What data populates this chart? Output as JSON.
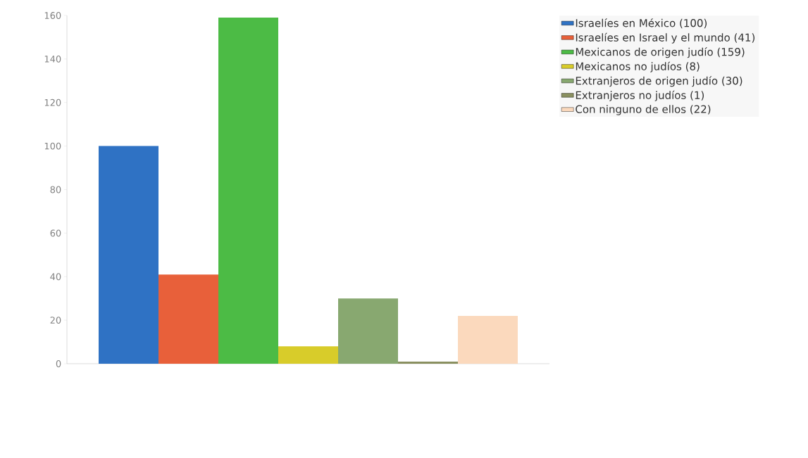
{
  "chart_data": {
    "type": "bar",
    "categories": [
      null
    ],
    "series": [
      {
        "name": "Israelíes en México (100)",
        "color": "#2f72c4",
        "values": [
          100
        ]
      },
      {
        "name": "Israelíes en Israel y el mundo (41)",
        "color": "#e8603a",
        "values": [
          41
        ]
      },
      {
        "name": "Mexicanos de origen judío (159)",
        "color": "#4cbb45",
        "values": [
          159
        ]
      },
      {
        "name": "Mexicanos no judíos (8)",
        "color": "#d8cc2a",
        "values": [
          8
        ]
      },
      {
        "name": "Extranjeros de origen judío (30)",
        "color": "#88a870",
        "values": [
          30
        ]
      },
      {
        "name": "Extranjeros no judíos (1)",
        "color": "#8a9060",
        "values": [
          1
        ]
      },
      {
        "name": "Con ninguno de ellos (22)",
        "color": "#fbd9bd",
        "values": [
          22
        ]
      }
    ],
    "ylim": [
      0,
      160
    ],
    "yticks": [
      0,
      20,
      40,
      60,
      80,
      100,
      120,
      140,
      160
    ],
    "legend": "right",
    "tick_labels": "y"
  }
}
